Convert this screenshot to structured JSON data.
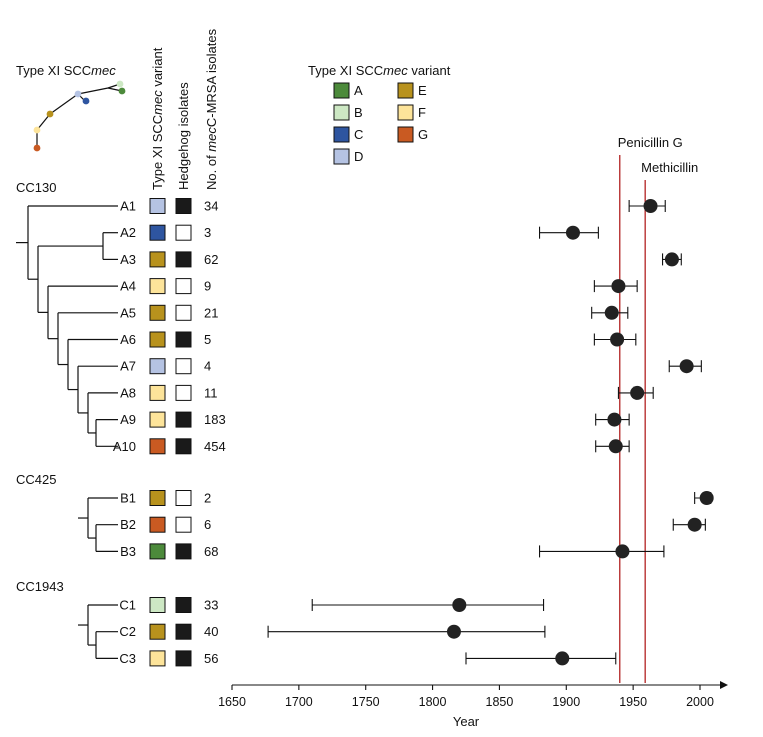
{
  "chart_data": {
    "type": "scatter",
    "title": "",
    "xlabel": "Year",
    "xlim": [
      1650,
      2025
    ],
    "xticks": [
      1650,
      1700,
      1750,
      1800,
      1850,
      1900,
      1950,
      2000
    ],
    "column_headers": {
      "variant": "Type XI SCCmec variant",
      "hedgehog": "Hedgehog isolates",
      "count": "No. of mecC-MRSA isolates"
    },
    "inset_title": "Type XI SCCmec",
    "legend": {
      "title": "Type XI SCCmec variant",
      "entries": [
        {
          "name": "A",
          "color": "#4c8a3b"
        },
        {
          "name": "B",
          "color": "#cde8c4"
        },
        {
          "name": "C",
          "color": "#2e55a0"
        },
        {
          "name": "D",
          "color": "#b5c3e3"
        },
        {
          "name": "E",
          "color": "#b8921d"
        },
        {
          "name": "F",
          "color": "#fde49a"
        },
        {
          "name": "G",
          "color": "#c95a22"
        }
      ]
    },
    "groups": [
      {
        "name": "CC130",
        "rows": [
          {
            "label": "A1",
            "variant": "D",
            "hedgehog": true,
            "count": "34",
            "year": 1963,
            "ci": [
              1947,
              1974
            ]
          },
          {
            "label": "A2",
            "variant": "C",
            "hedgehog": false,
            "count": "3",
            "year": 1905,
            "ci": [
              1880,
              1924
            ]
          },
          {
            "label": "A3",
            "variant": "E",
            "hedgehog": true,
            "count": "62",
            "year": 1979,
            "ci": [
              1972,
              1986
            ]
          },
          {
            "label": "A4",
            "variant": "F",
            "hedgehog": false,
            "count": "9",
            "year": 1939,
            "ci": [
              1921,
              1953
            ]
          },
          {
            "label": "A5",
            "variant": "E",
            "hedgehog": false,
            "count": "21",
            "year": 1934,
            "ci": [
              1919,
              1946
            ]
          },
          {
            "label": "A6",
            "variant": "E",
            "hedgehog": true,
            "count": "5",
            "year": 1938,
            "ci": [
              1921,
              1952
            ]
          },
          {
            "label": "A7",
            "variant": "D",
            "hedgehog": false,
            "count": "4",
            "year": 1990,
            "ci": [
              1977,
              2001
            ]
          },
          {
            "label": "A8",
            "variant": "F",
            "hedgehog": false,
            "count": "11",
            "year": 1953,
            "ci": [
              1939,
              1965
            ]
          },
          {
            "label": "A9",
            "variant": "F",
            "hedgehog": true,
            "count": "183",
            "year": 1936,
            "ci": [
              1922,
              1947
            ]
          },
          {
            "label": "A10",
            "variant": "G",
            "hedgehog": true,
            "count": "454",
            "year": 1937,
            "ci": [
              1922,
              1947
            ]
          }
        ]
      },
      {
        "name": "CC425",
        "rows": [
          {
            "label": "B1",
            "variant": "E",
            "hedgehog": false,
            "count": "2",
            "year": 2005,
            "ci": [
              1996,
              2008
            ]
          },
          {
            "label": "B2",
            "variant": "G",
            "hedgehog": false,
            "count": "6",
            "year": 1996,
            "ci": [
              1980,
              2004
            ]
          },
          {
            "label": "B3",
            "variant": "A",
            "hedgehog": true,
            "count": "68",
            "year": 1942,
            "ci": [
              1880,
              1973
            ]
          }
        ]
      },
      {
        "name": "CC1943",
        "rows": [
          {
            "label": "C1",
            "variant": "B",
            "hedgehog": true,
            "count": "33",
            "year": 1820,
            "ci": [
              1710,
              1883
            ]
          },
          {
            "label": "C2",
            "variant": "E",
            "hedgehog": true,
            "count": "40",
            "year": 1816,
            "ci": [
              1677,
              1884
            ]
          },
          {
            "label": "C3",
            "variant": "F",
            "hedgehog": true,
            "count": "56",
            "year": 1897,
            "ci": [
              1825,
              1937
            ]
          }
        ]
      }
    ],
    "reference_lines": [
      {
        "label": "Penicillin G",
        "year": 1940,
        "color": "#b22222"
      },
      {
        "label": "Methicillin",
        "year": 1959,
        "color": "#b22222"
      }
    ]
  }
}
